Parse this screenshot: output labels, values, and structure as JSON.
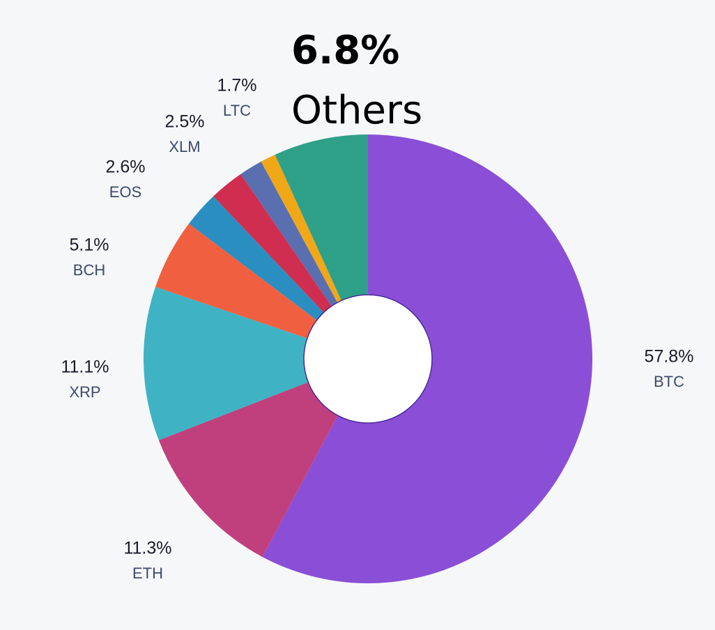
{
  "chart_data": {
    "type": "pie",
    "donut": true,
    "categories": [
      "BTC",
      "ETH",
      "XRP",
      "BCH",
      "EOS",
      "XLM",
      "LTC",
      null,
      "Others"
    ],
    "values": [
      57.8,
      11.3,
      11.1,
      5.1,
      2.6,
      2.5,
      1.7,
      1.1,
      6.8
    ],
    "value_labels": [
      "57.8%",
      "11.3%",
      "11.1%",
      "5.1%",
      "2.6%",
      "2.5%",
      "1.7%",
      null,
      "6.8%"
    ],
    "colors": [
      "#8a4fd6",
      "#c0407e",
      "#3fb3c4",
      "#f06040",
      "#2a8fc0",
      "#d02e50",
      "#5a6fb0",
      "#f0a818",
      "#2fa088"
    ]
  }
}
